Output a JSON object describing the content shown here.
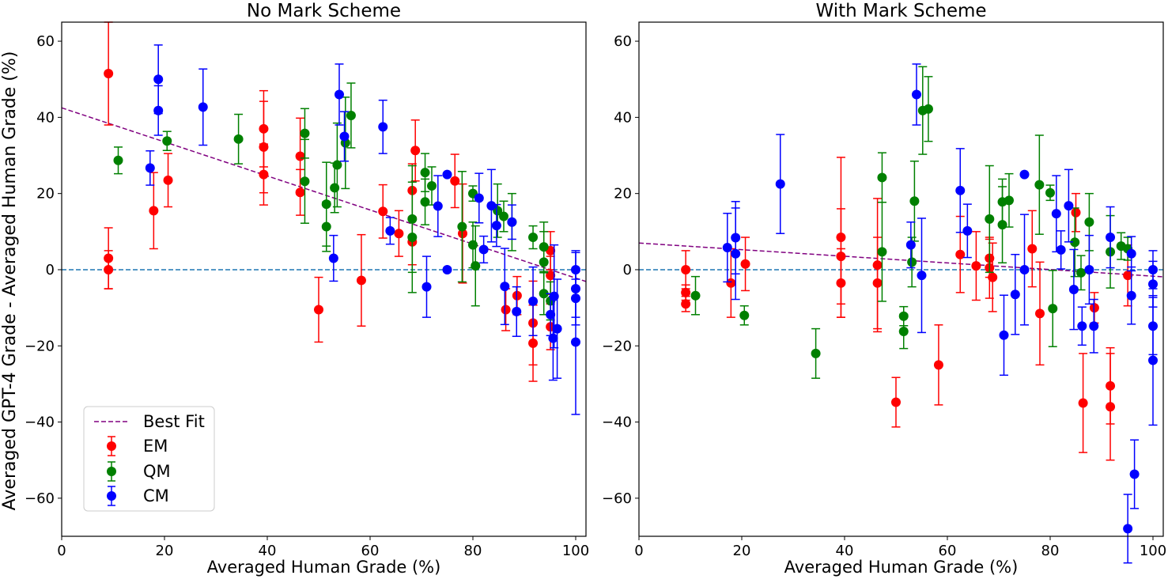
{
  "figure": {
    "ylabel": "Averaged GPT-4 Grade - Averaged Human Grade (%)"
  },
  "chart_data": [
    {
      "type": "scatter",
      "title": "No Mark Scheme",
      "xlabel": "Averaged Human Grade (%)",
      "ylabel": "Averaged GPT-4 Grade - Averaged Human Grade (%)",
      "xlim": [
        0,
        102
      ],
      "ylim": [
        -70,
        65
      ],
      "xticks": [
        0,
        20,
        40,
        60,
        80,
        100
      ],
      "yticks": [
        -60,
        -40,
        -20,
        0,
        20,
        40,
        60
      ],
      "grid": false,
      "reference_line": {
        "y": 0,
        "color": "#1f77b4",
        "style": "dashed"
      },
      "best_fit": {
        "name": "Best Fit",
        "color": "purple",
        "slope": -0.447,
        "intercept": 42.5
      },
      "legend": {
        "placement": "lower-left",
        "entries": [
          "Best Fit",
          "EM",
          "QM",
          "CM"
        ]
      },
      "series": [
        {
          "name": "EM",
          "color": "#ff0000",
          "points": [
            {
              "x": 9.1,
              "y": 51.5,
              "err": 13.5
            },
            {
              "x": 9.1,
              "y": 3.0,
              "err": 8.0
            },
            {
              "x": 9.1,
              "y": 0.0,
              "err": 5.0
            },
            {
              "x": 17.9,
              "y": 15.5,
              "err": 10.0
            },
            {
              "x": 20.7,
              "y": 23.5,
              "err": 7.0
            },
            {
              "x": 39.3,
              "y": 37.0,
              "err": 10.0
            },
            {
              "x": 39.3,
              "y": 32.2,
              "err": 12.0
            },
            {
              "x": 39.3,
              "y": 25.0,
              "err": 8.0
            },
            {
              "x": 46.4,
              "y": 29.8,
              "err": 10.0
            },
            {
              "x": 46.4,
              "y": 20.3,
              "err": 6.0
            },
            {
              "x": 50.0,
              "y": -10.5,
              "err": 8.5
            },
            {
              "x": 58.3,
              "y": -2.8,
              "err": 12.0
            },
            {
              "x": 62.5,
              "y": 15.3,
              "err": 7.0
            },
            {
              "x": 65.6,
              "y": 9.5,
              "err": 6.0
            },
            {
              "x": 68.2,
              "y": 20.8,
              "err": 7.0
            },
            {
              "x": 68.2,
              "y": 7.3,
              "err": 6.0
            },
            {
              "x": 68.8,
              "y": 31.3,
              "err": 8.0
            },
            {
              "x": 76.5,
              "y": 23.3,
              "err": 7.0
            },
            {
              "x": 78.0,
              "y": 9.5,
              "err": 13.0
            },
            {
              "x": 86.4,
              "y": -10.5,
              "err": 5.5
            },
            {
              "x": 88.6,
              "y": -6.8,
              "err": 5.0
            },
            {
              "x": 91.7,
              "y": -14.0,
              "err": 11.0
            },
            {
              "x": 91.7,
              "y": -19.3,
              "err": 10.0
            },
            {
              "x": 95.1,
              "y": 5.0,
              "err": 5.0
            },
            {
              "x": 95.1,
              "y": -1.5,
              "err": 5.0
            },
            {
              "x": 95.1,
              "y": -15.0,
              "err": 6.0
            }
          ]
        },
        {
          "name": "QM",
          "color": "#008000",
          "points": [
            {
              "x": 11.0,
              "y": 28.7,
              "err": 3.5
            },
            {
              "x": 20.5,
              "y": 33.8,
              "err": 2.5
            },
            {
              "x": 34.4,
              "y": 34.3,
              "err": 6.5
            },
            {
              "x": 47.3,
              "y": 35.8,
              "err": 6.5
            },
            {
              "x": 47.3,
              "y": 23.2,
              "err": 11.0
            },
            {
              "x": 51.5,
              "y": 17.2,
              "err": 11.0
            },
            {
              "x": 51.5,
              "y": 11.3,
              "err": 6.5
            },
            {
              "x": 53.1,
              "y": 21.5,
              "err": 6.5
            },
            {
              "x": 53.6,
              "y": 27.5,
              "err": 11.0
            },
            {
              "x": 55.2,
              "y": 33.3,
              "err": 12.0
            },
            {
              "x": 56.3,
              "y": 40.5,
              "err": 8.5
            },
            {
              "x": 68.2,
              "y": 13.3,
              "err": 14.0
            },
            {
              "x": 68.2,
              "y": 8.5,
              "err": 14.5
            },
            {
              "x": 70.7,
              "y": 25.5,
              "err": 5.0
            },
            {
              "x": 70.7,
              "y": 17.8,
              "err": 6.0
            },
            {
              "x": 72.0,
              "y": 22.0,
              "err": 5.0
            },
            {
              "x": 77.9,
              "y": 11.3,
              "err": 14.5
            },
            {
              "x": 80.0,
              "y": 20.0,
              "err": 2.0
            },
            {
              "x": 80.0,
              "y": 6.5,
              "err": 6.0
            },
            {
              "x": 80.5,
              "y": 1.0,
              "err": 10.5
            },
            {
              "x": 84.8,
              "y": 15.5,
              "err": 7.0
            },
            {
              "x": 86.0,
              "y": 14.0,
              "err": 4.0
            },
            {
              "x": 87.6,
              "y": 12.5,
              "err": 7.5
            },
            {
              "x": 91.7,
              "y": 8.5,
              "err": 3.0
            },
            {
              "x": 93.8,
              "y": 6.0,
              "err": 6.5
            },
            {
              "x": 93.8,
              "y": 2.0,
              "err": 8.0
            },
            {
              "x": 93.8,
              "y": -6.3,
              "err": 5.5
            },
            {
              "x": 95.1,
              "y": -8.2,
              "err": 5.0
            }
          ]
        },
        {
          "name": "CM",
          "color": "#0000ff",
          "points": [
            {
              "x": 17.2,
              "y": 26.7,
              "err": 4.5
            },
            {
              "x": 18.8,
              "y": 50.0,
              "err": 9.0
            },
            {
              "x": 18.8,
              "y": 41.8,
              "err": 6.5
            },
            {
              "x": 27.5,
              "y": 42.7,
              "err": 10.0
            },
            {
              "x": 52.9,
              "y": 3.0,
              "err": 6.0
            },
            {
              "x": 54.0,
              "y": 46.0,
              "err": 8.0
            },
            {
              "x": 55.0,
              "y": 35.0,
              "err": 6.5
            },
            {
              "x": 62.5,
              "y": 37.5,
              "err": 7.0
            },
            {
              "x": 63.9,
              "y": 10.2,
              "err": 3.5
            },
            {
              "x": 71.0,
              "y": -4.5,
              "err": 8.0
            },
            {
              "x": 73.2,
              "y": 16.7,
              "err": 8.0
            },
            {
              "x": 75.0,
              "y": 25.0,
              "err": 0
            },
            {
              "x": 75.0,
              "y": 0.0,
              "err": 0
            },
            {
              "x": 81.2,
              "y": 18.8,
              "err": 6.5
            },
            {
              "x": 82.1,
              "y": 5.3,
              "err": 3.5
            },
            {
              "x": 83.6,
              "y": 16.8,
              "err": 9.5
            },
            {
              "x": 84.6,
              "y": 11.6,
              "err": 5.5
            },
            {
              "x": 86.2,
              "y": -4.4,
              "err": 10.0
            },
            {
              "x": 87.6,
              "y": 12.5,
              "err": 4.5
            },
            {
              "x": 88.5,
              "y": -11.0,
              "err": 6.5
            },
            {
              "x": 91.7,
              "y": -8.3,
              "err": 9.0
            },
            {
              "x": 95.1,
              "y": -11.8,
              "err": 5.5
            },
            {
              "x": 95.6,
              "y": -18.0,
              "err": 11.0
            },
            {
              "x": 95.8,
              "y": -7.0,
              "err": 13.5
            },
            {
              "x": 96.4,
              "y": -15.5,
              "err": 13.0
            },
            {
              "x": 100.0,
              "y": 0.0,
              "err": 5.0
            },
            {
              "x": 100.0,
              "y": -5.0,
              "err": 9.5
            },
            {
              "x": 100.0,
              "y": -7.5,
              "err": 5.0
            },
            {
              "x": 100.0,
              "y": -19.0,
              "err": 19.0
            }
          ]
        }
      ]
    },
    {
      "type": "scatter",
      "title": "With Mark Scheme",
      "xlabel": "Averaged Human Grade (%)",
      "ylabel": "",
      "xlim": [
        0,
        102
      ],
      "ylim": [
        -70,
        65
      ],
      "xticks": [
        0,
        20,
        40,
        60,
        80,
        100
      ],
      "yticks": [
        -60,
        -40,
        -20,
        0,
        20,
        40,
        60
      ],
      "grid": false,
      "reference_line": {
        "y": 0,
        "color": "#1f77b4",
        "style": "dashed"
      },
      "best_fit": {
        "name": "Best Fit",
        "color": "purple",
        "slope": -0.087,
        "intercept": 7.0
      },
      "series": [
        {
          "name": "EM",
          "color": "#ff0000",
          "points": [
            {
              "x": 9.1,
              "y": 0.0,
              "err": 5.0
            },
            {
              "x": 9.1,
              "y": -6.0,
              "err": 2.0
            },
            {
              "x": 9.1,
              "y": -9.0,
              "err": 2.0
            },
            {
              "x": 17.9,
              "y": -3.5,
              "err": 9.0
            },
            {
              "x": 20.7,
              "y": 1.5,
              "err": 7.0
            },
            {
              "x": 39.3,
              "y": 8.5,
              "err": 21.0
            },
            {
              "x": 39.3,
              "y": 3.5,
              "err": 12.5
            },
            {
              "x": 39.3,
              "y": -3.5,
              "err": 9.0
            },
            {
              "x": 46.4,
              "y": 1.2,
              "err": 17.5
            },
            {
              "x": 46.4,
              "y": -3.5,
              "err": 12.0
            },
            {
              "x": 50.0,
              "y": -34.8,
              "err": 6.5
            },
            {
              "x": 58.3,
              "y": -25.0,
              "err": 10.5
            },
            {
              "x": 62.5,
              "y": 4.0,
              "err": 10.0
            },
            {
              "x": 65.6,
              "y": 1.0,
              "err": 9.0
            },
            {
              "x": 68.2,
              "y": 3.0,
              "err": 5.0
            },
            {
              "x": 68.2,
              "y": 0.5,
              "err": 8.0
            },
            {
              "x": 68.8,
              "y": -2.0,
              "err": 9.0
            },
            {
              "x": 76.5,
              "y": 5.5,
              "err": 10.0
            },
            {
              "x": 78.0,
              "y": -11.5,
              "err": 13.5
            },
            {
              "x": 85.0,
              "y": 15.0,
              "err": 5.0
            },
            {
              "x": 86.4,
              "y": -35.0,
              "err": 13.0
            },
            {
              "x": 88.6,
              "y": -10.0,
              "err": 4.0
            },
            {
              "x": 91.7,
              "y": -30.5,
              "err": 10.0
            },
            {
              "x": 91.7,
              "y": -36.0,
              "err": 14.0
            },
            {
              "x": 95.1,
              "y": -1.5,
              "err": 8.0
            }
          ]
        },
        {
          "name": "QM",
          "color": "#008000",
          "points": [
            {
              "x": 11.0,
              "y": -6.8,
              "err": 5.0
            },
            {
              "x": 20.5,
              "y": -12.0,
              "err": 2.5
            },
            {
              "x": 34.4,
              "y": -22.0,
              "err": 6.5
            },
            {
              "x": 47.3,
              "y": 24.2,
              "err": 6.5
            },
            {
              "x": 47.3,
              "y": 4.7,
              "err": 13.0
            },
            {
              "x": 51.5,
              "y": -12.2,
              "err": 2.5
            },
            {
              "x": 51.5,
              "y": -16.2,
              "err": 4.5
            },
            {
              "x": 53.1,
              "y": 2.0,
              "err": 6.5
            },
            {
              "x": 53.6,
              "y": 18.0,
              "err": 10.5
            },
            {
              "x": 55.2,
              "y": 41.8,
              "err": 11.5
            },
            {
              "x": 56.3,
              "y": 42.2,
              "err": 8.5
            },
            {
              "x": 68.2,
              "y": 13.3,
              "err": 14.0
            },
            {
              "x": 70.7,
              "y": 17.8,
              "err": 6.0
            },
            {
              "x": 70.7,
              "y": 11.8,
              "err": 10.0
            },
            {
              "x": 72.0,
              "y": 18.2,
              "err": 7.0
            },
            {
              "x": 77.9,
              "y": 22.3,
              "err": 13.0
            },
            {
              "x": 80.0,
              "y": 20.2,
              "err": 2.0
            },
            {
              "x": 80.5,
              "y": -10.2,
              "err": 10.0
            },
            {
              "x": 84.8,
              "y": 7.2,
              "err": 9.0
            },
            {
              "x": 86.0,
              "y": -0.8,
              "err": 4.5
            },
            {
              "x": 87.6,
              "y": 12.5,
              "err": 7.5
            },
            {
              "x": 91.7,
              "y": 4.7,
              "err": 9.5
            },
            {
              "x": 93.8,
              "y": 6.2,
              "err": 3.5
            },
            {
              "x": 95.1,
              "y": 5.5,
              "err": 3.0
            }
          ]
        },
        {
          "name": "CM",
          "color": "#0000ff",
          "points": [
            {
              "x": 17.2,
              "y": 5.8,
              "err": 9.0
            },
            {
              "x": 18.8,
              "y": 8.4,
              "err": 9.5
            },
            {
              "x": 18.8,
              "y": 4.2,
              "err": 12.0
            },
            {
              "x": 27.5,
              "y": 22.5,
              "err": 13.0
            },
            {
              "x": 52.9,
              "y": 6.5,
              "err": 6.0
            },
            {
              "x": 54.0,
              "y": 46.0,
              "err": 8.0
            },
            {
              "x": 55.0,
              "y": -1.5,
              "err": 15.0
            },
            {
              "x": 62.5,
              "y": 20.8,
              "err": 11.0
            },
            {
              "x": 63.9,
              "y": 10.2,
              "err": 7.0
            },
            {
              "x": 71.0,
              "y": -17.2,
              "err": 10.5
            },
            {
              "x": 73.2,
              "y": -6.5,
              "err": 10.5
            },
            {
              "x": 75.0,
              "y": 25.0,
              "err": 0
            },
            {
              "x": 75.0,
              "y": 0.0,
              "err": 14.5
            },
            {
              "x": 81.2,
              "y": 14.7,
              "err": 10.0
            },
            {
              "x": 82.1,
              "y": 5.2,
              "err": 5.0
            },
            {
              "x": 83.6,
              "y": 16.8,
              "err": 9.5
            },
            {
              "x": 84.6,
              "y": -5.2,
              "err": 10.5
            },
            {
              "x": 86.2,
              "y": -14.8,
              "err": 5.0
            },
            {
              "x": 87.6,
              "y": 0.0,
              "err": 9.0
            },
            {
              "x": 88.5,
              "y": -14.8,
              "err": 7.0
            },
            {
              "x": 91.7,
              "y": 8.5,
              "err": 8.0
            },
            {
              "x": 95.1,
              "y": -68.0,
              "err": 9.0
            },
            {
              "x": 95.8,
              "y": 4.2,
              "err": 4.5
            },
            {
              "x": 95.8,
              "y": -6.8,
              "err": 7.5
            },
            {
              "x": 96.4,
              "y": -53.7,
              "err": 9.0
            },
            {
              "x": 100.0,
              "y": 0.0,
              "err": 5.0
            },
            {
              "x": 100.0,
              "y": -3.8,
              "err": 6.0
            },
            {
              "x": 100.0,
              "y": -14.8,
              "err": 7.5
            },
            {
              "x": 100.0,
              "y": -23.8,
              "err": 17.0
            }
          ]
        }
      ]
    }
  ]
}
